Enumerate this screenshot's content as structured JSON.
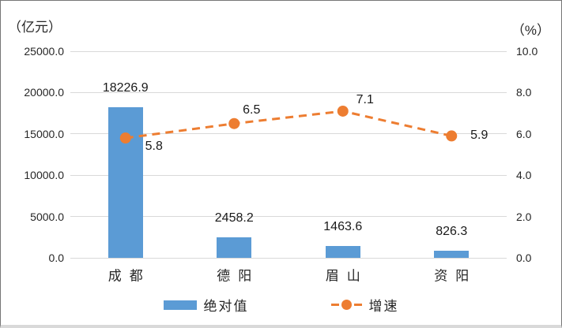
{
  "chart_data": {
    "type": "bar",
    "subtype": "combo-bar-line-dual-axis",
    "categories": [
      "成都",
      "德阳",
      "眉山",
      "资阳"
    ],
    "series": [
      {
        "name": "绝对值",
        "type": "bar",
        "axis": "left",
        "values": [
          18226.9,
          2458.2,
          1463.6,
          826.3
        ],
        "labels": [
          "18226.9",
          "2458.2",
          "1463.6",
          "826.3"
        ]
      },
      {
        "name": "增速",
        "type": "line",
        "axis": "right",
        "values": [
          5.8,
          6.5,
          7.1,
          5.9
        ],
        "labels": [
          "5.8",
          "6.5",
          "7.1",
          "5.9"
        ]
      }
    ],
    "left_axis": {
      "title": "（亿元）",
      "min": 0,
      "max": 25000,
      "ticks": [
        "25000.0",
        "20000.0",
        "15000.0",
        "10000.0",
        "5000.0",
        "0.0"
      ]
    },
    "right_axis": {
      "title": "（%）",
      "min": 0,
      "max": 10,
      "ticks": [
        "10.0",
        "8.0",
        "6.0",
        "4.0",
        "2.0",
        "0.0"
      ]
    },
    "grid": true,
    "legend_position": "bottom"
  },
  "colors": {
    "bar": "#5B9BD5",
    "line": "#ED7D31",
    "grid": "#D9D9D9",
    "text": "#262626"
  }
}
